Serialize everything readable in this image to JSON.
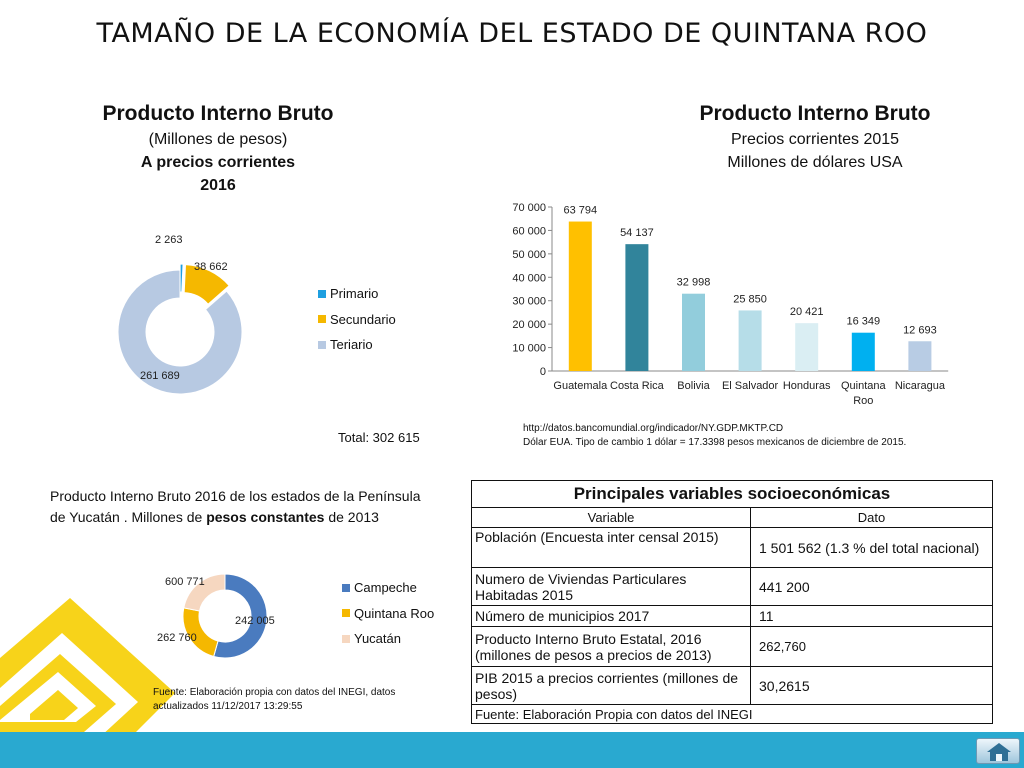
{
  "title": "TAMAÑO DE LA ECONOMÍA DEL ESTADO DE QUINTANA ROO",
  "pib_state": {
    "heading": "Producto Interno Bruto",
    "line1": "(Millones de pesos)",
    "line2": "A precios corrientes",
    "line3": "2016",
    "total": "Total: 302 615",
    "colors": {
      "Primario": "#1e9fe0",
      "Secundario": "#f5b800",
      "Teriario": "#b7c9e2"
    }
  },
  "pib_countries": {
    "heading": "Producto Interno Bruto",
    "line1": "Precios corrientes 2015",
    "line2": "Millones de dólares USA",
    "source_url": "http://datos.bancomundial.org/indicador/NY.GDP.MKTP.CD",
    "source_note": "Dólar EUA. Tipo de cambio 1 dólar = 17.3398 pesos mexicanos de diciembre de 2015."
  },
  "peninsula": {
    "caption_part1": "Producto Interno Bruto 2016 de los estados de la Península de Yucatán . Millones de ",
    "caption_bold": "pesos constantes",
    "caption_part2": " de 2013",
    "source": "Fuente: Elaboración propia con datos del INEGI, datos actualizados 11/12/2017 13:29:55",
    "colors": {
      "Campeche": "#4a7bbf",
      "Quintana Roo": "#f5b800",
      "Yucatán": "#f6d7c0"
    }
  },
  "chart_data": [
    {
      "type": "pie",
      "categories": [
        "Primario",
        "Secundario",
        "Teriario"
      ],
      "values": [
        2263,
        38662,
        261689
      ],
      "value_labels": [
        "2 263",
        "38 662",
        "261 689"
      ],
      "legend": "right"
    },
    {
      "type": "bar",
      "categories": [
        "Guatemala",
        "Costa Rica",
        "Bolivia",
        "El Salvador",
        "Honduras",
        "Quintana Roo",
        "Nicaragua"
      ],
      "values": [
        63794,
        54137,
        32998,
        25850,
        20421,
        16349,
        12693
      ],
      "value_labels": [
        "63 794",
        "54 137",
        "32 998",
        "25 850",
        "20 421",
        "16 349",
        "12 693"
      ],
      "colors": [
        "#ffc000",
        "#31849b",
        "#92cddc",
        "#b6dde8",
        "#daeef3",
        "#00b0f0",
        "#b8cce4"
      ],
      "ylim": [
        0,
        70000
      ],
      "yticks": [
        0,
        10000,
        20000,
        30000,
        40000,
        50000,
        60000,
        70000
      ],
      "ytick_labels": [
        "0",
        "10 000",
        "20 000",
        "30 000",
        "40 000",
        "50 000",
        "60 000",
        "70 000"
      ],
      "grid": false
    },
    {
      "type": "pie",
      "categories": [
        "Campeche",
        "Quintana Roo",
        "Yucatán"
      ],
      "values": [
        600771,
        262760,
        242005
      ],
      "value_labels": [
        "600 771",
        "262 760",
        "242 005"
      ],
      "legend": "right"
    }
  ],
  "table": {
    "title": "Principales variables socioeconómicas",
    "col_variable": "Variable",
    "col_dato": "Dato",
    "rows": [
      {
        "variable": "Población (Encuesta inter censal 2015)",
        "dato": "1 501 562 (1.3 % del total nacional)"
      },
      {
        "variable": "Numero de Viviendas  Particulares Habitadas 2015",
        "dato": "441 200"
      },
      {
        "variable": "Número de municipios 2017",
        "dato": "11"
      },
      {
        "variable": "Producto Interno Bruto Estatal, 2016 (millones de pesos a precios de 2013)",
        "dato": "262,760"
      },
      {
        "variable": "PIB 2015 a precios corrientes  (millones de pesos)",
        "dato": "30,2615"
      }
    ],
    "footer": "Fuente: Elaboración Propia con datos del INEGI"
  },
  "nav": {
    "home_icon": "home-icon"
  }
}
